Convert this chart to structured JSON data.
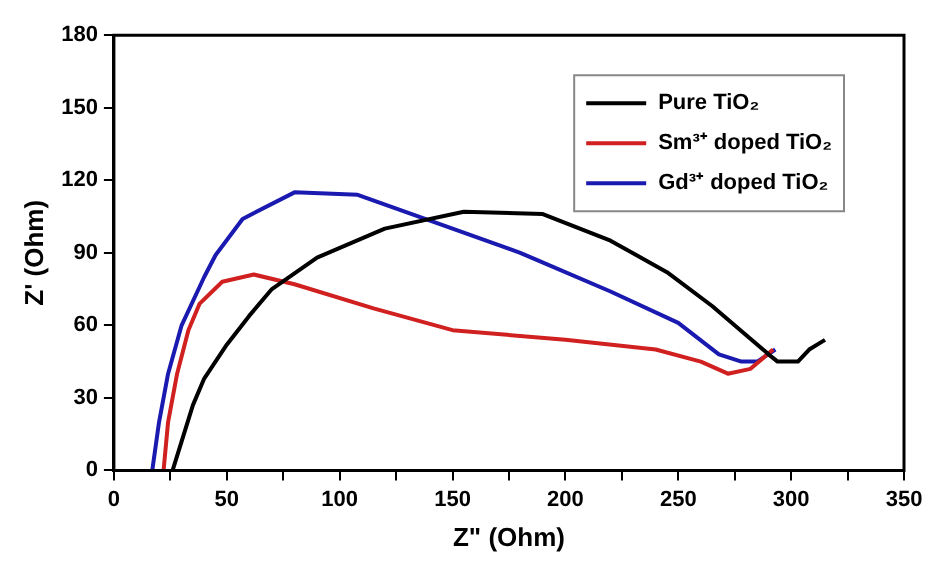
{
  "chart_data": {
    "type": "line",
    "xlabel": "Z\" (Ohm)",
    "ylabel": "Z' (Ohm)",
    "xlim": [
      0,
      350
    ],
    "ylim": [
      0,
      180
    ],
    "xticks": [
      0,
      {
        "value": 25,
        "label": null
      },
      50,
      {
        "value": 75,
        "label": null
      },
      100,
      {
        "value": 125,
        "label": null
      },
      150,
      {
        "value": 175,
        "label": null
      },
      200,
      {
        "value": 225,
        "label": null
      },
      250,
      {
        "value": 275,
        "label": null
      },
      300,
      {
        "value": 325,
        "label": null
      },
      350
    ],
    "yticks": [
      0,
      30,
      60,
      90,
      120,
      150,
      180
    ],
    "grid": false,
    "legend": "top right",
    "marker": "none",
    "line_style": "solid",
    "series": [
      {
        "name": "Pure TiO₂",
        "color": "#000000",
        "x": [
          26,
          30,
          35,
          40,
          50,
          60,
          70,
          90,
          120,
          155,
          190,
          220,
          245,
          265,
          280,
          290,
          294,
          303,
          308,
          315
        ],
        "values": [
          0,
          12,
          27,
          38,
          52,
          64,
          75,
          88,
          100,
          107,
          106,
          95,
          82,
          68,
          56,
          48,
          45,
          45,
          50,
          54
        ]
      },
      {
        "name": "Sm³⁺ doped TiO₂",
        "color": "#d02020",
        "x": [
          22,
          24,
          28,
          33,
          38,
          48,
          62,
          80,
          115,
          150,
          200,
          240,
          260,
          272,
          282,
          292
        ],
        "values": [
          0,
          20,
          40,
          58,
          69,
          78,
          81,
          77,
          67,
          58,
          54,
          50,
          45,
          40,
          42,
          50
        ]
      },
      {
        "name": "Gd³⁺ doped TiO₂",
        "color": "#1a1ab0",
        "x": [
          17,
          20,
          24,
          30,
          40,
          45,
          57,
          80,
          108,
          150,
          180,
          220,
          250,
          268,
          278,
          285,
          293
        ],
        "values": [
          0,
          20,
          40,
          60,
          80,
          89,
          104,
          115,
          114,
          100,
          90,
          74,
          61,
          48,
          45,
          45,
          50
        ]
      }
    ]
  }
}
